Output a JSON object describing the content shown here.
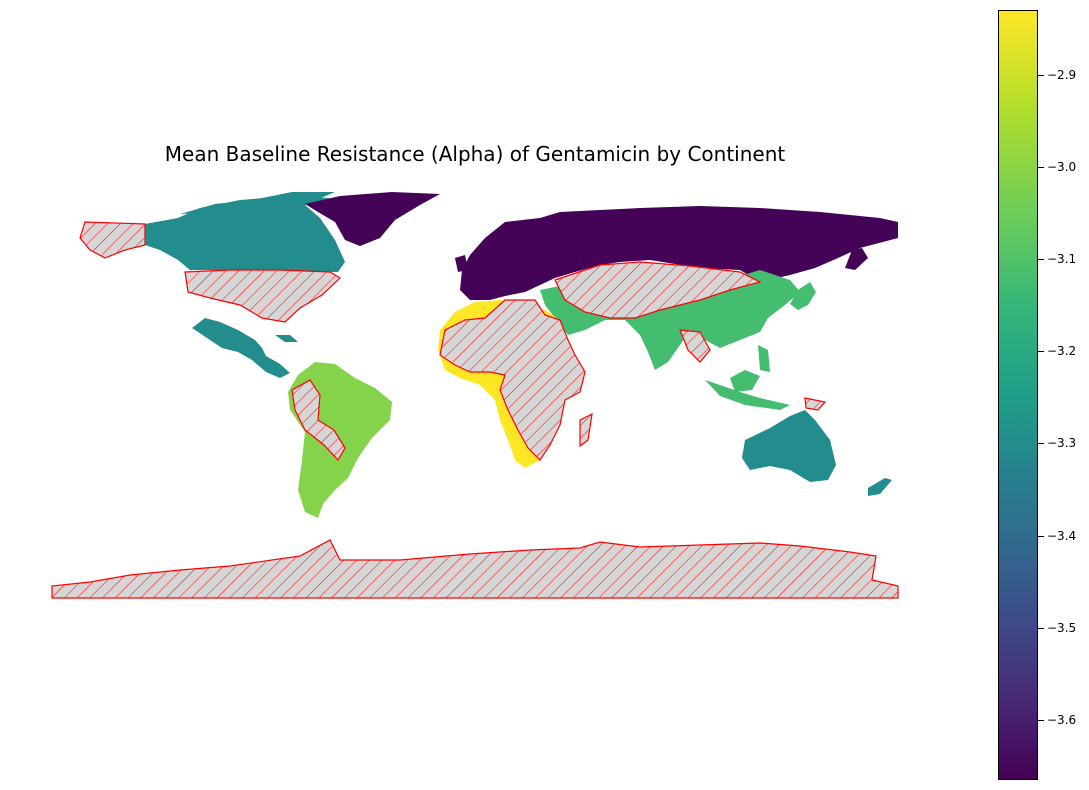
{
  "chart_data": {
    "type": "choropleth",
    "title": "Mean Baseline Resistance (Alpha) of Gentamicin by Continent",
    "colormap": "viridis",
    "color_range": [
      -3.665,
      -2.83
    ],
    "regions": [
      {
        "name": "Europe",
        "value": -3.66
      },
      {
        "name": "North America",
        "value": -3.3
      },
      {
        "name": "Oceania",
        "value": -3.3
      },
      {
        "name": "Asia",
        "value": -3.12
      },
      {
        "name": "South America",
        "value": -3.01
      },
      {
        "name": "Africa",
        "value": -2.83
      }
    ],
    "missing_data_style": "gray fill with red hatching and red outline",
    "colorbar": {
      "ticks": [
        {
          "value": -2.9,
          "label": "−2.9"
        },
        {
          "value": -3.0,
          "label": "−3.0"
        },
        {
          "value": -3.1,
          "label": "−3.1"
        },
        {
          "value": -3.2,
          "label": "−3.2"
        },
        {
          "value": -3.3,
          "label": "−3.3"
        },
        {
          "value": -3.4,
          "label": "−3.4"
        },
        {
          "value": -3.5,
          "label": "−3.5"
        },
        {
          "value": -3.6,
          "label": "−3.6"
        }
      ]
    }
  }
}
